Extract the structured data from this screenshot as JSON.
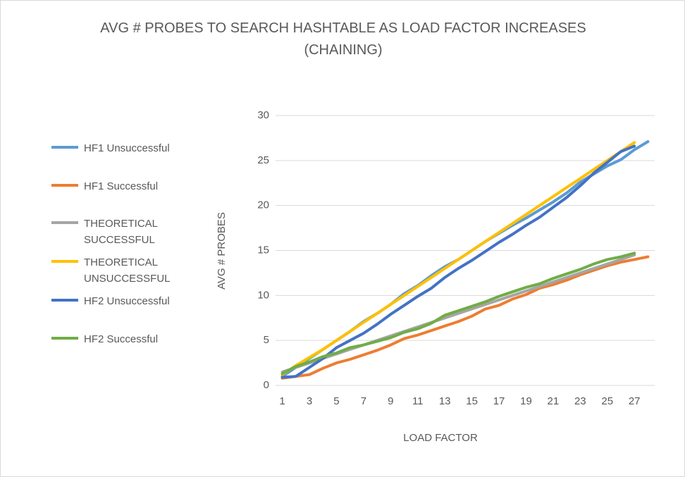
{
  "chart_data": {
    "type": "line",
    "title": "AVG # PROBES TO SEARCH HASHTABLE AS LOAD FACTOR INCREASES (CHAINING)",
    "xlabel": "LOAD FACTOR",
    "ylabel": "AVG # PROBES",
    "categories": [
      1,
      null,
      3,
      null,
      5,
      null,
      7,
      null,
      9,
      null,
      11,
      null,
      13,
      null,
      15,
      null,
      17,
      null,
      19,
      null,
      21,
      null,
      23,
      null,
      25,
      null,
      27,
      null
    ],
    "ylim": [
      0,
      30
    ],
    "yticks": [
      0,
      5,
      10,
      15,
      20,
      25,
      30
    ],
    "grid": true,
    "legend": "left",
    "series": [
      {
        "name": "HF1 Unsuccessful",
        "color": "#5b9bd5",
        "values": [
          1.0,
          2.0,
          3.0,
          4.0,
          5.0,
          6.0,
          7.1,
          8.0,
          9.0,
          10.2,
          11.1,
          12.2,
          13.2,
          14.0,
          15.0,
          16.0,
          16.9,
          17.8,
          18.6,
          19.5,
          20.4,
          21.4,
          22.6,
          23.5,
          24.4,
          25.1,
          26.2,
          27.1
        ]
      },
      {
        "name": "HF1 Successful",
        "color": "#ed7d31",
        "values": [
          0.8,
          1.0,
          1.2,
          1.9,
          2.5,
          2.9,
          3.4,
          3.9,
          4.5,
          5.2,
          5.6,
          6.1,
          6.6,
          7.1,
          7.7,
          8.5,
          8.9,
          9.6,
          10.1,
          10.8,
          11.2,
          11.7,
          12.3,
          12.8,
          13.3,
          13.7,
          14.0,
          14.3
        ]
      },
      {
        "name": "THEORETICAL SUCCESSFUL",
        "color": "#a5a5a5",
        "values": [
          1.5,
          2.0,
          2.5,
          3.0,
          3.5,
          4.0,
          4.5,
          5.0,
          5.5,
          6.0,
          6.5,
          7.0,
          7.5,
          8.0,
          8.5,
          9.0,
          9.5,
          10.0,
          10.5,
          11.0,
          11.5,
          12.0,
          12.5,
          13.0,
          13.5,
          14.0,
          14.5,
          null
        ]
      },
      {
        "name": "THEORETICAL UNSUCCESSFUL",
        "color": "#ffc000",
        "values": [
          1.2,
          2.2,
          3.1,
          4.0,
          5.0,
          6.0,
          7.0,
          8.0,
          9.0,
          10.0,
          11.0,
          12.0,
          13.0,
          14.0,
          15.0,
          16.0,
          17.0,
          18.0,
          19.0,
          20.0,
          21.0,
          22.0,
          23.0,
          24.0,
          25.0,
          26.0,
          27.0,
          null
        ]
      },
      {
        "name": "HF2 Unsuccessful",
        "color": "#4472c4",
        "values": [
          0.9,
          1.0,
          2.0,
          3.0,
          4.2,
          5.0,
          5.8,
          6.8,
          7.9,
          8.9,
          9.9,
          10.8,
          12.0,
          13.0,
          13.9,
          14.9,
          15.9,
          16.8,
          17.8,
          18.7,
          19.8,
          20.9,
          22.2,
          23.6,
          24.8,
          26.0,
          26.6,
          null
        ]
      },
      {
        "name": "HF2 Successful",
        "color": "#70ad47",
        "values": [
          1.3,
          2.1,
          2.6,
          3.2,
          3.6,
          4.2,
          4.5,
          4.9,
          5.3,
          5.9,
          6.3,
          6.9,
          7.8,
          8.3,
          8.8,
          9.3,
          9.9,
          10.4,
          10.9,
          11.3,
          11.9,
          12.4,
          12.9,
          13.5,
          14.0,
          14.3,
          14.7,
          null
        ]
      }
    ]
  }
}
